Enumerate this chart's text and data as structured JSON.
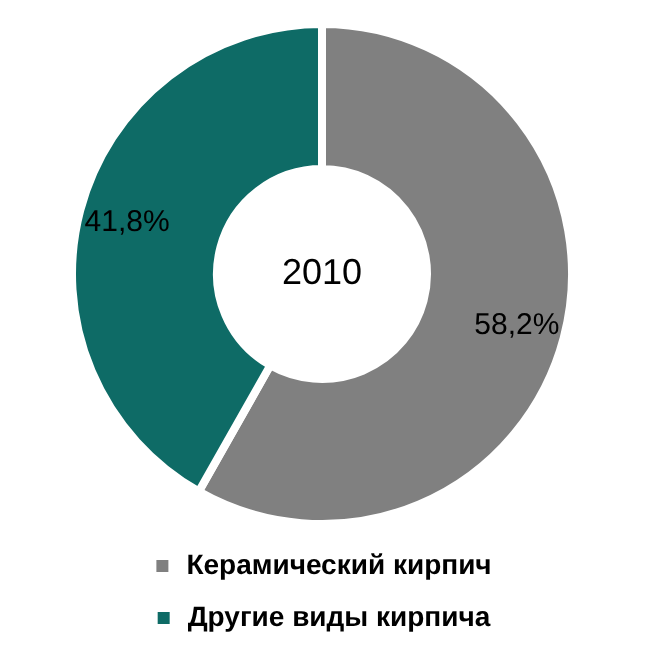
{
  "chart_data": {
    "type": "donut",
    "title": "2010",
    "categories": [
      "Керамический кирпич",
      "Другие виды кирпича"
    ],
    "values": [
      58.2,
      41.8
    ],
    "colors": [
      "#808080",
      "#0e6b66"
    ],
    "value_labels": [
      "58,2%",
      "41,8%"
    ],
    "legend": "bottom"
  }
}
